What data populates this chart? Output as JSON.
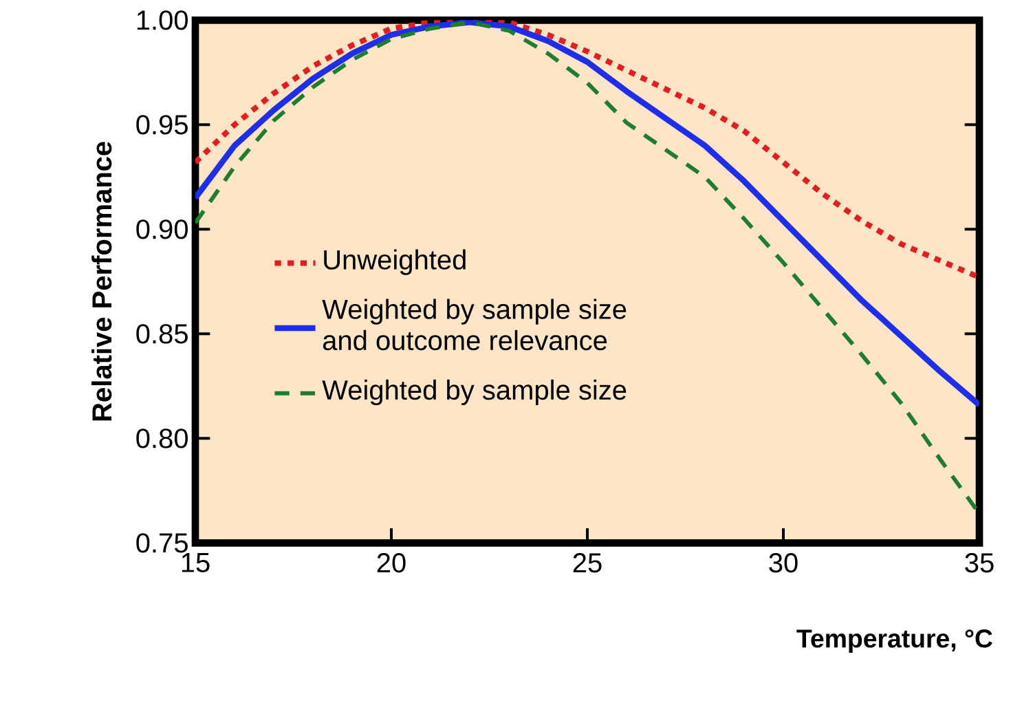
{
  "chart_data": {
    "type": "line",
    "xlabel": "Temperature, °C",
    "ylabel": "Relative Performance",
    "xlim": [
      15,
      35
    ],
    "ylim": [
      0.75,
      1.0
    ],
    "xticks": [
      15,
      20,
      25,
      30,
      35
    ],
    "yticks": [
      {
        "value": 0.75,
        "label": "0.75"
      },
      {
        "value": 0.8,
        "label": "0.80"
      },
      {
        "value": 0.85,
        "label": "0.85"
      },
      {
        "value": 0.9,
        "label": "0.90"
      },
      {
        "value": 0.95,
        "label": "0.95"
      },
      {
        "value": 1.0,
        "label": "1.00"
      }
    ],
    "x": [
      15,
      16,
      17,
      18,
      19,
      20,
      21,
      22,
      23,
      24,
      25,
      26,
      27,
      28,
      29,
      30,
      31,
      32,
      33,
      34,
      35
    ],
    "legend": "left",
    "series": [
      {
        "name": "Unweighted",
        "color": "#e02020",
        "line_style": "dotted",
        "values": [
          0.932,
          0.95,
          0.965,
          0.978,
          0.988,
          0.996,
          0.999,
          1.0,
          0.999,
          0.993,
          0.985,
          0.976,
          0.967,
          0.958,
          0.947,
          0.932,
          0.917,
          0.904,
          0.893,
          0.885,
          0.877
        ]
      },
      {
        "name": "Weighted by sample size and outcome relevance",
        "color": "#1f2ee8",
        "line_style": "solid",
        "values": [
          0.915,
          0.94,
          0.957,
          0.972,
          0.984,
          0.993,
          0.997,
          0.999,
          0.997,
          0.99,
          0.98,
          0.966,
          0.953,
          0.94,
          0.923,
          0.904,
          0.885,
          0.866,
          0.849,
          0.832,
          0.816
        ]
      },
      {
        "name": "Weighted by sample size",
        "color": "#1e7d2e",
        "line_style": "dashed",
        "values": [
          0.903,
          0.93,
          0.952,
          0.968,
          0.981,
          0.991,
          0.996,
          0.999,
          0.995,
          0.984,
          0.97,
          0.951,
          0.938,
          0.925,
          0.905,
          0.884,
          0.862,
          0.84,
          0.817,
          0.79,
          0.764
        ]
      }
    ]
  }
}
